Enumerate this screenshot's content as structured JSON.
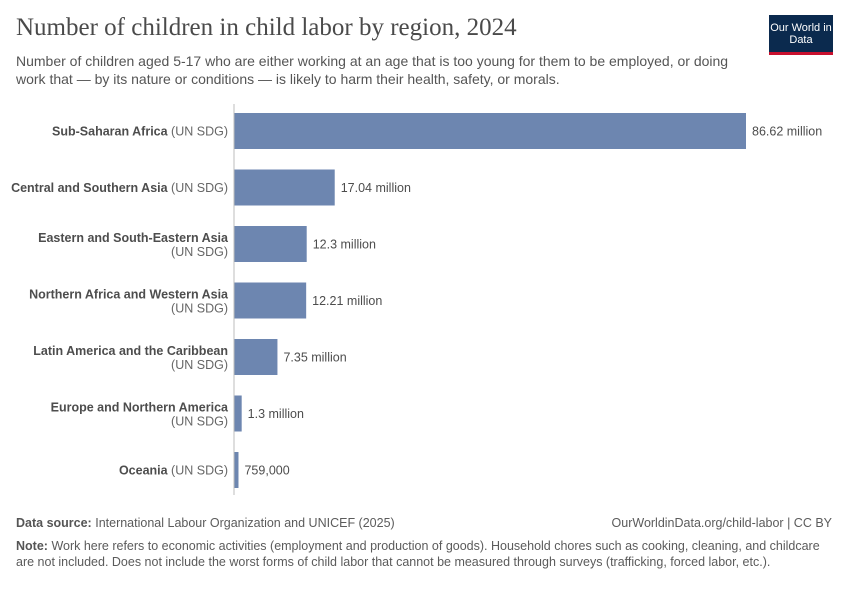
{
  "header": {
    "title": "Number of children in child labor by region, 2024",
    "subtitle": "Number of children aged 5-17 who are either working at an age that is too young for them to be employed, or doing work that — by its nature or conditions — is likely to harm their health, safety, or morals.",
    "logo_text": "Our World in Data"
  },
  "chart_data": {
    "type": "bar",
    "orientation": "horizontal",
    "categories": [
      [
        "Sub-Saharan Africa",
        "(UN SDG)"
      ],
      [
        "Central and Southern Asia",
        "(UN SDG)"
      ],
      [
        "Eastern and South-Eastern Asia",
        "(UN SDG)"
      ],
      [
        "Northern Africa and Western Asia",
        "(UN SDG)"
      ],
      [
        "Latin America and the Caribbean",
        "(UN SDG)"
      ],
      [
        "Europe and Northern America",
        "(UN SDG)"
      ],
      [
        "Oceania",
        "(UN SDG)"
      ]
    ],
    "values": [
      86620000,
      17040000,
      12300000,
      12210000,
      7350000,
      1300000,
      759000
    ],
    "value_labels": [
      "86.62 million",
      "17.04 million",
      "12.3 million",
      "12.21 million",
      "7.35 million",
      "1.3 million",
      "759,000"
    ],
    "bar_color": "#6d86b0",
    "grid": false,
    "title": "Number of children in child labor by region, 2024"
  },
  "footer": {
    "source_label": "Data source:",
    "source_text": "International Labour Organization and UNICEF (2025)",
    "url": "OurWorldinData.org/child-labor | CC BY",
    "note_label": "Note:",
    "note_text": "Work here refers to economic activities (employment and production of goods). Household chores such as cooking, cleaning, and childcare are not included. Does not include the worst forms of child labor that cannot be measured through surveys (trafficking, forced labor, etc.)."
  }
}
